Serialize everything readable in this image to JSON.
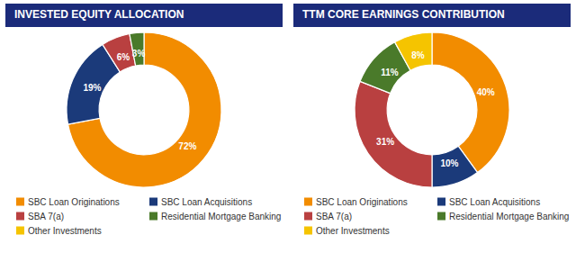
{
  "chart_data": [
    {
      "type": "donut",
      "title": "INVESTED EQUITY ALLOCATION",
      "categories": [
        "SBC Loan Originations",
        "SBC Loan Acquisitions",
        "SBA 7(a)",
        "Residential Mortgage Banking",
        "Other Investments"
      ],
      "values": [
        72,
        19,
        6,
        3,
        null
      ],
      "value_labels": [
        "72%",
        "19%",
        "6%",
        "3%",
        null
      ],
      "colors": [
        "#F28C00",
        "#1B3A7A",
        "#B94040",
        "#4A7A2A",
        "#F5C400"
      ],
      "data_labels": true
    },
    {
      "type": "donut",
      "title": "TTM CORE EARNINGS CONTRIBUTION",
      "categories": [
        "SBC Loan Originations",
        "SBC Loan Acquisitions",
        "SBA 7(a)",
        "Residential Mortgage Banking",
        "Other Investments"
      ],
      "values": [
        40,
        10,
        31,
        11,
        8
      ],
      "value_labels": [
        "40%",
        "10%",
        "31%",
        "11%",
        "8%"
      ],
      "colors": [
        "#F28C00",
        "#1B3A7A",
        "#B94040",
        "#4A7A2A",
        "#F5C400"
      ],
      "data_labels": true
    }
  ]
}
